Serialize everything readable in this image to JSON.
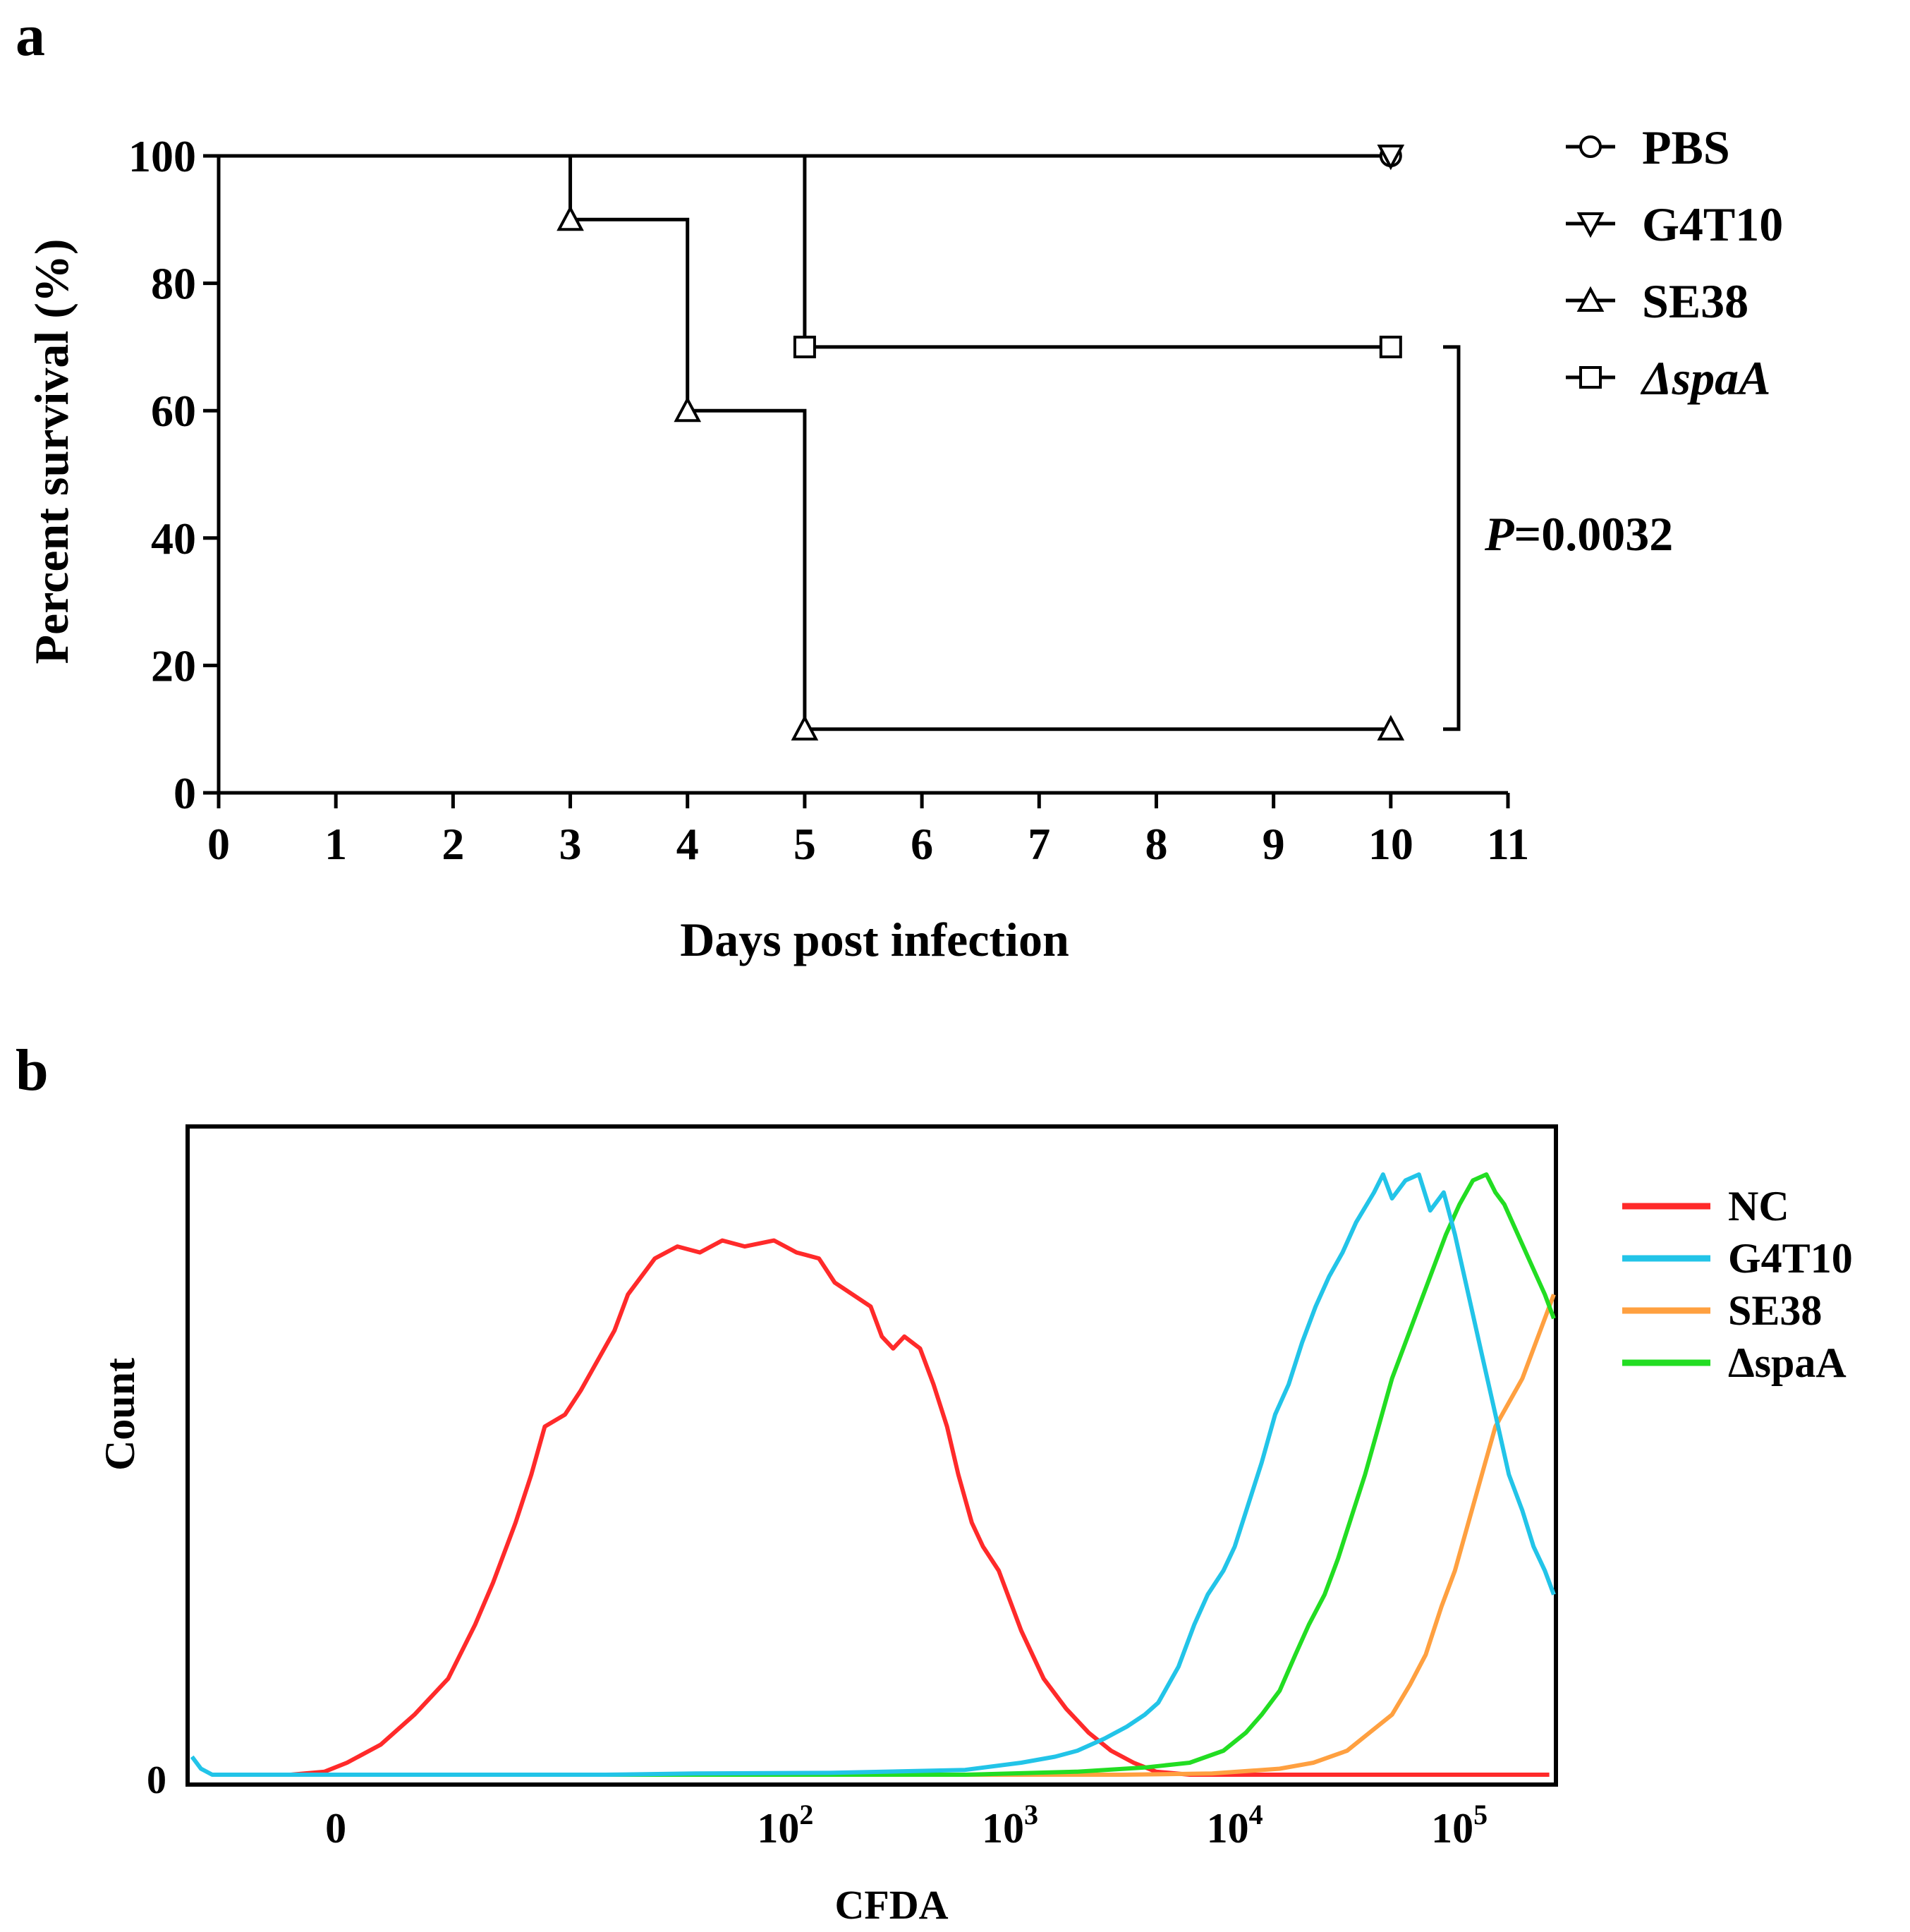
{
  "chart_data": [
    {
      "panel_label": "a",
      "type": "line",
      "subtype": "kaplan-meier-survival",
      "xlabel": "Days post infection",
      "ylabel": "Percent survival (%)",
      "xlim": [
        0,
        11
      ],
      "ylim": [
        0,
        100
      ],
      "xticks": [
        "0",
        "1",
        "2",
        "3",
        "4",
        "5",
        "6",
        "7",
        "8",
        "9",
        "10",
        "11"
      ],
      "yticks": [
        "0",
        "20",
        "40",
        "60",
        "80",
        "100"
      ],
      "legend_position": "top-right",
      "series": [
        {
          "name": "PBS",
          "marker": "circle",
          "steps": [
            [
              0,
              100
            ],
            [
              10,
              100
            ]
          ],
          "markers": [
            [
              10,
              100
            ]
          ]
        },
        {
          "name": "G4T10",
          "marker": "triangle-down",
          "steps": [
            [
              0,
              100
            ],
            [
              10,
              100
            ]
          ],
          "markers": [
            [
              10,
              100
            ]
          ]
        },
        {
          "name": "SE38",
          "marker": "triangle-up",
          "steps": [
            [
              0,
              100
            ],
            [
              3,
              90
            ],
            [
              4,
              60
            ],
            [
              5,
              10
            ],
            [
              10,
              10
            ]
          ],
          "markers": [
            [
              3,
              90
            ],
            [
              4,
              60
            ],
            [
              5,
              10
            ],
            [
              10,
              10
            ]
          ]
        },
        {
          "name": "ΔspaA",
          "marker": "square",
          "italic": true,
          "steps": [
            [
              0,
              100
            ],
            [
              5,
              70
            ],
            [
              10,
              70
            ]
          ],
          "markers": [
            [
              5,
              70
            ],
            [
              10,
              70
            ]
          ]
        }
      ],
      "annotation": {
        "p_label": "P",
        "p_value": "=0.0032",
        "between": [
          "SE38",
          "ΔspaA"
        ],
        "at_day": 10
      }
    },
    {
      "panel_label": "b",
      "type": "line",
      "subtype": "flow-cytometry-histogram",
      "xlabel": "CFDA",
      "ylabel": "Count",
      "yticks": [
        "0"
      ],
      "xtick_labels": [
        {
          "base": "0",
          "exp": "",
          "value": 0
        },
        {
          "base": "10",
          "exp": "2",
          "value": 2
        },
        {
          "base": "10",
          "exp": "3",
          "value": 3
        },
        {
          "base": "10",
          "exp": "4",
          "value": 4
        },
        {
          "base": "10",
          "exp": "5",
          "value": 5
        }
      ],
      "xlim_log10": [
        -0.65,
        5.42
      ],
      "ylim": [
        0,
        1
      ],
      "legend_position": "top-right",
      "series": [
        {
          "name": "NC",
          "color": "#ff2a2a",
          "points": [
            [
              -0.55,
              0
            ],
            [
              -0.2,
              0
            ],
            [
              -0.05,
              0.005
            ],
            [
              0.05,
              0.02
            ],
            [
              0.2,
              0.05
            ],
            [
              0.35,
              0.1
            ],
            [
              0.5,
              0.16
            ],
            [
              0.62,
              0.25
            ],
            [
              0.7,
              0.32
            ],
            [
              0.8,
              0.42
            ],
            [
              0.87,
              0.5
            ],
            [
              0.93,
              0.58
            ],
            [
              1.02,
              0.6
            ],
            [
              1.09,
              0.64
            ],
            [
              1.15,
              0.68
            ],
            [
              1.24,
              0.74
            ],
            [
              1.3,
              0.8
            ],
            [
              1.42,
              0.86
            ],
            [
              1.52,
              0.88
            ],
            [
              1.62,
              0.87
            ],
            [
              1.72,
              0.89
            ],
            [
              1.82,
              0.88
            ],
            [
              1.95,
              0.89
            ],
            [
              2.05,
              0.87
            ],
            [
              2.15,
              0.86
            ],
            [
              2.22,
              0.82
            ],
            [
              2.3,
              0.8
            ],
            [
              2.38,
              0.78
            ],
            [
              2.43,
              0.73
            ],
            [
              2.48,
              0.71
            ],
            [
              2.53,
              0.73
            ],
            [
              2.6,
              0.71
            ],
            [
              2.66,
              0.65
            ],
            [
              2.72,
              0.58
            ],
            [
              2.77,
              0.5
            ],
            [
              2.83,
              0.42
            ],
            [
              2.88,
              0.38
            ],
            [
              2.95,
              0.34
            ],
            [
              3.05,
              0.24
            ],
            [
              3.15,
              0.16
            ],
            [
              3.25,
              0.11
            ],
            [
              3.35,
              0.07
            ],
            [
              3.45,
              0.04
            ],
            [
              3.55,
              0.02
            ],
            [
              3.65,
              0.005
            ],
            [
              3.8,
              0
            ],
            [
              5.4,
              0
            ]
          ]
        },
        {
          "name": "G4T10",
          "color": "#22c4e8",
          "points": [
            [
              -0.64,
              0.03
            ],
            [
              -0.6,
              0.01
            ],
            [
              -0.55,
              0
            ],
            [
              1.2,
              0
            ],
            [
              1.6,
              0.002
            ],
            [
              2.2,
              0.003
            ],
            [
              2.8,
              0.008
            ],
            [
              3.05,
              0.02
            ],
            [
              3.2,
              0.03
            ],
            [
              3.3,
              0.04
            ],
            [
              3.42,
              0.06
            ],
            [
              3.52,
              0.08
            ],
            [
              3.6,
              0.1
            ],
            [
              3.66,
              0.12
            ],
            [
              3.75,
              0.18
            ],
            [
              3.82,
              0.25
            ],
            [
              3.88,
              0.3
            ],
            [
              3.95,
              0.34
            ],
            [
              4.0,
              0.38
            ],
            [
              4.06,
              0.45
            ],
            [
              4.12,
              0.52
            ],
            [
              4.18,
              0.6
            ],
            [
              4.24,
              0.65
            ],
            [
              4.3,
              0.72
            ],
            [
              4.36,
              0.78
            ],
            [
              4.42,
              0.83
            ],
            [
              4.48,
              0.87
            ],
            [
              4.54,
              0.92
            ],
            [
              4.62,
              0.97
            ],
            [
              4.66,
              1.0
            ],
            [
              4.7,
              0.96
            ],
            [
              4.76,
              0.99
            ],
            [
              4.82,
              1.0
            ],
            [
              4.87,
              0.94
            ],
            [
              4.93,
              0.97
            ],
            [
              4.98,
              0.9
            ],
            [
              5.04,
              0.8
            ],
            [
              5.1,
              0.7
            ],
            [
              5.16,
              0.6
            ],
            [
              5.22,
              0.5
            ],
            [
              5.28,
              0.44
            ],
            [
              5.33,
              0.38
            ],
            [
              5.38,
              0.34
            ],
            [
              5.42,
              0.3
            ]
          ]
        },
        {
          "name": "SE38",
          "color": "#ffa040",
          "points": [
            [
              -0.55,
              0
            ],
            [
              3.5,
              0
            ],
            [
              3.9,
              0.002
            ],
            [
              4.2,
              0.01
            ],
            [
              4.35,
              0.02
            ],
            [
              4.5,
              0.04
            ],
            [
              4.6,
              0.07
            ],
            [
              4.7,
              0.1
            ],
            [
              4.78,
              0.15
            ],
            [
              4.85,
              0.2
            ],
            [
              4.92,
              0.28
            ],
            [
              4.98,
              0.34
            ],
            [
              5.04,
              0.42
            ],
            [
              5.1,
              0.5
            ],
            [
              5.16,
              0.58
            ],
            [
              5.22,
              0.62
            ],
            [
              5.28,
              0.66
            ],
            [
              5.34,
              0.72
            ],
            [
              5.38,
              0.76
            ],
            [
              5.42,
              0.8
            ]
          ]
        },
        {
          "name": "ΔspaA",
          "color": "#22dd22",
          "points": [
            [
              -0.55,
              0
            ],
            [
              2.8,
              0
            ],
            [
              3.3,
              0.005
            ],
            [
              3.6,
              0.012
            ],
            [
              3.8,
              0.02
            ],
            [
              3.95,
              0.04
            ],
            [
              4.05,
              0.07
            ],
            [
              4.12,
              0.1
            ],
            [
              4.2,
              0.14
            ],
            [
              4.27,
              0.2
            ],
            [
              4.33,
              0.25
            ],
            [
              4.4,
              0.3
            ],
            [
              4.46,
              0.36
            ],
            [
              4.52,
              0.43
            ],
            [
              4.58,
              0.5
            ],
            [
              4.64,
              0.58
            ],
            [
              4.7,
              0.66
            ],
            [
              4.76,
              0.72
            ],
            [
              4.82,
              0.78
            ],
            [
              4.88,
              0.84
            ],
            [
              4.94,
              0.9
            ],
            [
              5.0,
              0.95
            ],
            [
              5.06,
              0.99
            ],
            [
              5.12,
              1.0
            ],
            [
              5.16,
              0.97
            ],
            [
              5.2,
              0.95
            ],
            [
              5.26,
              0.9
            ],
            [
              5.32,
              0.85
            ],
            [
              5.38,
              0.8
            ],
            [
              5.42,
              0.76
            ]
          ]
        }
      ]
    }
  ]
}
